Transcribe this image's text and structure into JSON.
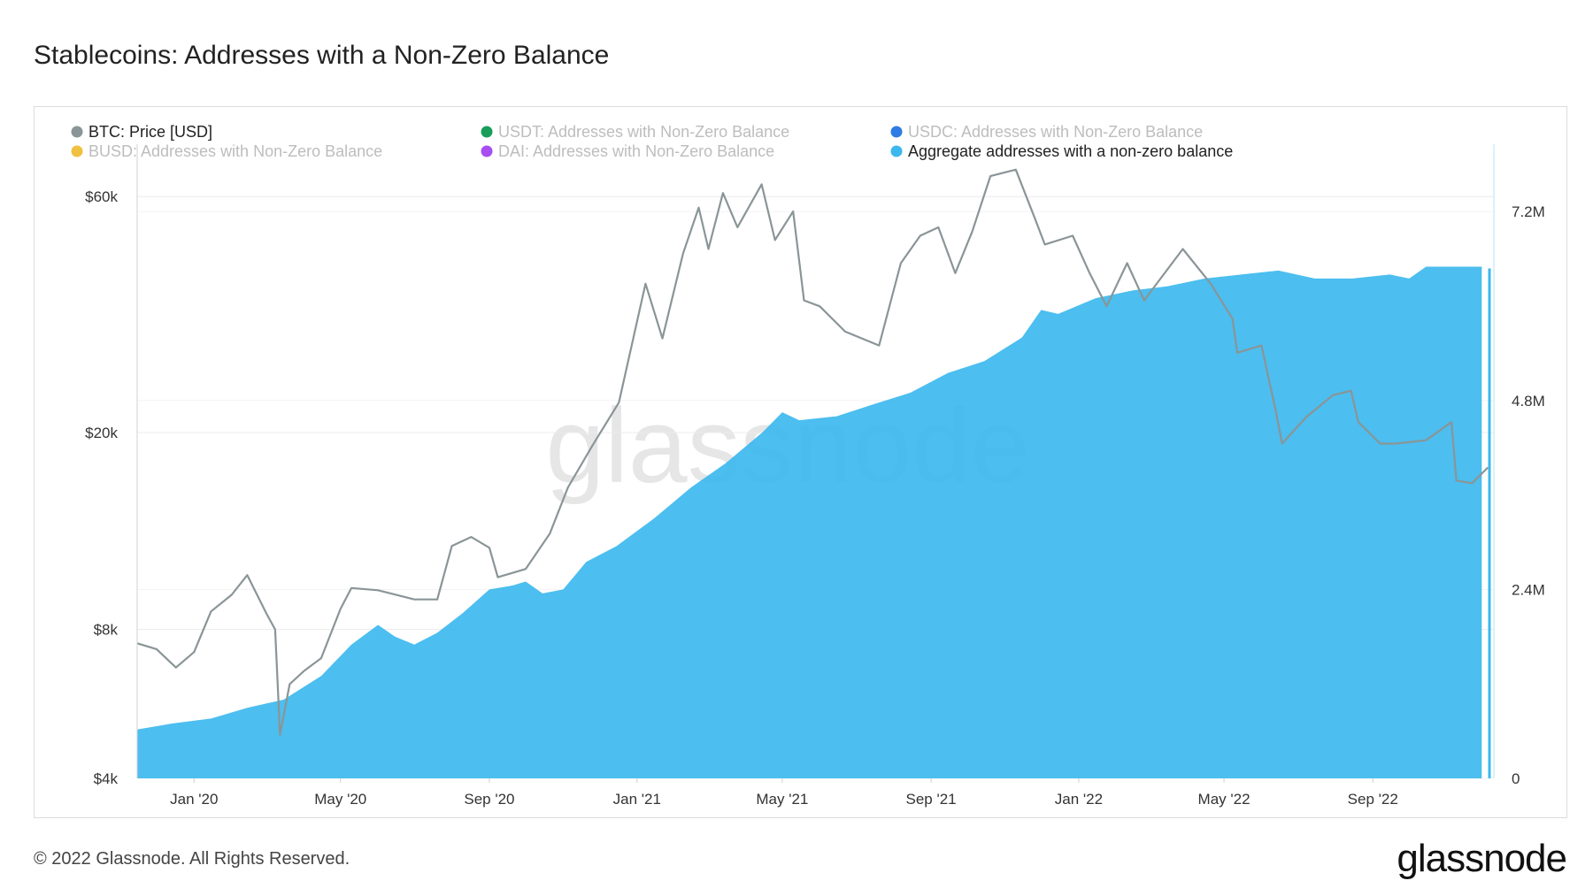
{
  "title": "Stablecoins: Addresses with a Non-Zero Balance",
  "footer": "© 2022 Glassnode. All Rights Reserved.",
  "logo_text": "glassnode",
  "watermark_text": "glassnode",
  "colors": {
    "btc": "#8a9597",
    "aggregate": "#3db8ee",
    "usdt": "#1a9c5b",
    "usdc": "#2d7be3",
    "busd": "#f0c040",
    "dai": "#a64ef0"
  },
  "legend": [
    {
      "label": "BTC: Price [USD]",
      "color": "#8a9597",
      "active": true
    },
    {
      "label": "USDT: Addresses with Non-Zero Balance",
      "color": "#1a9c5b",
      "active": false
    },
    {
      "label": "USDC: Addresses with Non-Zero Balance",
      "color": "#2d7be3",
      "active": false
    },
    {
      "label": "BUSD: Addresses with Non-Zero Balance",
      "color": "#f0c040",
      "active": false
    },
    {
      "label": "DAI: Addresses with Non-Zero Balance",
      "color": "#a64ef0",
      "active": false
    },
    {
      "label": "Aggregate addresses with a non-zero balance",
      "color": "#3db8ee",
      "active": true
    }
  ],
  "chart_data": {
    "type": "area",
    "x_range": [
      "2019-11-15",
      "2022-12-10"
    ],
    "x_tick_labels": [
      "Jan '20",
      "May '20",
      "Sep '20",
      "Jan '21",
      "May '21",
      "Sep '21",
      "Jan '22",
      "May '22",
      "Sep '22"
    ],
    "x_tick_dates": [
      "2020-01-01",
      "2020-05-01",
      "2020-09-01",
      "2021-01-01",
      "2021-05-01",
      "2021-09-01",
      "2022-01-01",
      "2022-05-01",
      "2022-09-01"
    ],
    "y_left": {
      "scale": "log",
      "range": [
        4000,
        75000
      ],
      "tick_labels": [
        "$4k",
        "$8k",
        "$20k",
        "$60k"
      ],
      "tick_values": [
        4000,
        8000,
        20000,
        60000
      ]
    },
    "y_right": {
      "scale": "linear",
      "range": [
        0,
        8000000
      ],
      "tick_labels": [
        "0",
        "2.4M",
        "4.8M",
        "7.2M"
      ],
      "tick_values": [
        0,
        2400000,
        4800000,
        7200000
      ]
    },
    "series": [
      {
        "name": "BTC: Price [USD]",
        "axis": "left",
        "type": "line",
        "points": [
          [
            "2019-11-15",
            7500
          ],
          [
            "2019-12-01",
            7300
          ],
          [
            "2019-12-17",
            6700
          ],
          [
            "2020-01-01",
            7200
          ],
          [
            "2020-01-15",
            8700
          ],
          [
            "2020-02-01",
            9400
          ],
          [
            "2020-02-14",
            10300
          ],
          [
            "2020-03-01",
            8600
          ],
          [
            "2020-03-08",
            8000
          ],
          [
            "2020-03-12",
            4900
          ],
          [
            "2020-03-20",
            6200
          ],
          [
            "2020-04-01",
            6600
          ],
          [
            "2020-04-15",
            7000
          ],
          [
            "2020-05-01",
            8800
          ],
          [
            "2020-05-10",
            9700
          ],
          [
            "2020-06-01",
            9600
          ],
          [
            "2020-07-01",
            9200
          ],
          [
            "2020-07-20",
            9200
          ],
          [
            "2020-08-01",
            11800
          ],
          [
            "2020-08-17",
            12300
          ],
          [
            "2020-09-01",
            11700
          ],
          [
            "2020-09-08",
            10200
          ],
          [
            "2020-10-01",
            10600
          ],
          [
            "2020-10-21",
            12500
          ],
          [
            "2020-11-05",
            15500
          ],
          [
            "2020-11-25",
            18800
          ],
          [
            "2020-12-17",
            23000
          ],
          [
            "2021-01-08",
            40000
          ],
          [
            "2021-01-22",
            31000
          ],
          [
            "2021-02-08",
            46000
          ],
          [
            "2021-02-21",
            57000
          ],
          [
            "2021-03-01",
            47000
          ],
          [
            "2021-03-13",
            61000
          ],
          [
            "2021-03-25",
            52000
          ],
          [
            "2021-04-14",
            63500
          ],
          [
            "2021-04-25",
            49000
          ],
          [
            "2021-05-10",
            56000
          ],
          [
            "2021-05-19",
            37000
          ],
          [
            "2021-06-01",
            36000
          ],
          [
            "2021-06-22",
            32000
          ],
          [
            "2021-07-20",
            30000
          ],
          [
            "2021-08-07",
            44000
          ],
          [
            "2021-08-23",
            50000
          ],
          [
            "2021-09-07",
            52000
          ],
          [
            "2021-09-21",
            42000
          ],
          [
            "2021-10-05",
            51000
          ],
          [
            "2021-10-20",
            66000
          ],
          [
            "2021-11-10",
            68000
          ],
          [
            "2021-11-26",
            54000
          ],
          [
            "2021-12-04",
            48000
          ],
          [
            "2021-12-27",
            50000
          ],
          [
            "2022-01-10",
            42000
          ],
          [
            "2022-01-24",
            36000
          ],
          [
            "2022-02-10",
            44000
          ],
          [
            "2022-02-24",
            37000
          ],
          [
            "2022-03-28",
            47000
          ],
          [
            "2022-04-20",
            40000
          ],
          [
            "2022-05-08",
            34000
          ],
          [
            "2022-05-12",
            29000
          ],
          [
            "2022-06-01",
            30000
          ],
          [
            "2022-06-13",
            22000
          ],
          [
            "2022-06-18",
            19000
          ],
          [
            "2022-07-08",
            21500
          ],
          [
            "2022-07-30",
            23800
          ],
          [
            "2022-08-14",
            24300
          ],
          [
            "2022-08-20",
            21000
          ],
          [
            "2022-09-07",
            19000
          ],
          [
            "2022-09-20",
            19000
          ],
          [
            "2022-10-15",
            19300
          ],
          [
            "2022-11-05",
            21000
          ],
          [
            "2022-11-09",
            16000
          ],
          [
            "2022-11-22",
            15800
          ],
          [
            "2022-12-05",
            17000
          ]
        ]
      },
      {
        "name": "Aggregate addresses with a non-zero balance",
        "axis": "right",
        "type": "area",
        "points": [
          [
            "2019-11-15",
            620000
          ],
          [
            "2019-12-15",
            700000
          ],
          [
            "2020-01-15",
            760000
          ],
          [
            "2020-02-15",
            900000
          ],
          [
            "2020-03-15",
            1000000
          ],
          [
            "2020-04-15",
            1300000
          ],
          [
            "2020-05-10",
            1700000
          ],
          [
            "2020-06-01",
            1950000
          ],
          [
            "2020-06-15",
            1800000
          ],
          [
            "2020-07-01",
            1700000
          ],
          [
            "2020-07-20",
            1850000
          ],
          [
            "2020-08-10",
            2100000
          ],
          [
            "2020-09-01",
            2400000
          ],
          [
            "2020-09-20",
            2450000
          ],
          [
            "2020-10-01",
            2500000
          ],
          [
            "2020-10-15",
            2350000
          ],
          [
            "2020-11-01",
            2400000
          ],
          [
            "2020-11-20",
            2750000
          ],
          [
            "2020-12-15",
            2950000
          ],
          [
            "2021-01-15",
            3300000
          ],
          [
            "2021-02-15",
            3700000
          ],
          [
            "2021-03-15",
            4000000
          ],
          [
            "2021-04-15",
            4400000
          ],
          [
            "2021-05-01",
            4650000
          ],
          [
            "2021-05-15",
            4550000
          ],
          [
            "2021-06-15",
            4600000
          ],
          [
            "2021-07-15",
            4750000
          ],
          [
            "2021-08-15",
            4900000
          ],
          [
            "2021-09-15",
            5150000
          ],
          [
            "2021-10-15",
            5300000
          ],
          [
            "2021-11-15",
            5600000
          ],
          [
            "2021-12-01",
            5950000
          ],
          [
            "2021-12-15",
            5900000
          ],
          [
            "2022-01-15",
            6100000
          ],
          [
            "2022-02-15",
            6200000
          ],
          [
            "2022-03-15",
            6250000
          ],
          [
            "2022-04-15",
            6350000
          ],
          [
            "2022-05-15",
            6400000
          ],
          [
            "2022-06-15",
            6450000
          ],
          [
            "2022-07-15",
            6350000
          ],
          [
            "2022-08-15",
            6350000
          ],
          [
            "2022-09-15",
            6400000
          ],
          [
            "2022-10-01",
            6350000
          ],
          [
            "2022-10-15",
            6500000
          ],
          [
            "2022-11-10",
            6500000
          ],
          [
            "2022-11-30",
            6500000
          ]
        ]
      }
    ]
  }
}
